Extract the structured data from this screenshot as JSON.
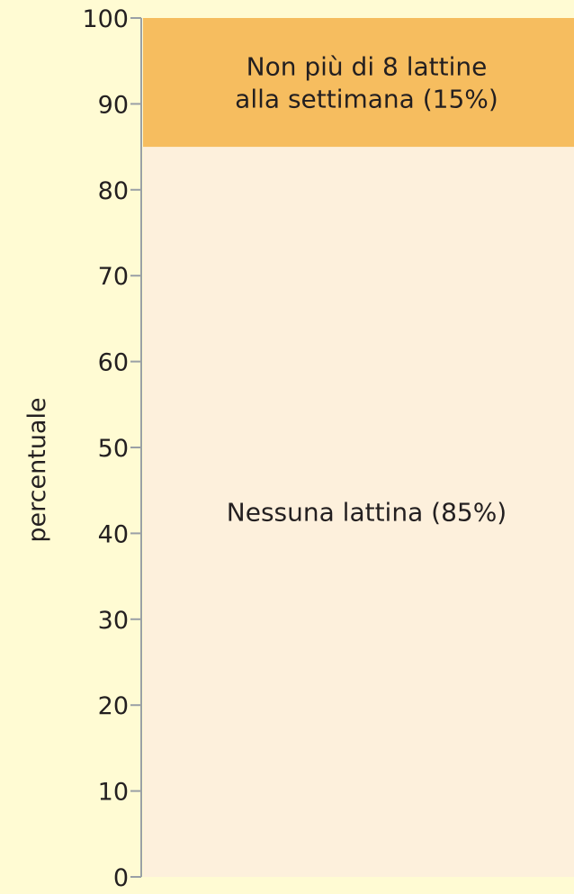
{
  "chart_data": {
    "type": "bar",
    "stacked": true,
    "ylabel": "percentuale",
    "ylim": [
      0,
      100
    ],
    "yticks": [
      "0",
      "10",
      "20",
      "30",
      "40",
      "50",
      "60",
      "70",
      "80",
      "90",
      "100"
    ],
    "grid": false,
    "series": [
      {
        "value": 85,
        "label_lines": [
          "Nessuna lattina (85%)"
        ],
        "color": "#fdf0dc"
      },
      {
        "value": 15,
        "label_lines": [
          "Non più di 8 lattine",
          "alla settimana (15%)"
        ],
        "color": "#f6bd5f"
      }
    ],
    "axis_color": "#9aa0a6",
    "background": "#fffbd3"
  }
}
